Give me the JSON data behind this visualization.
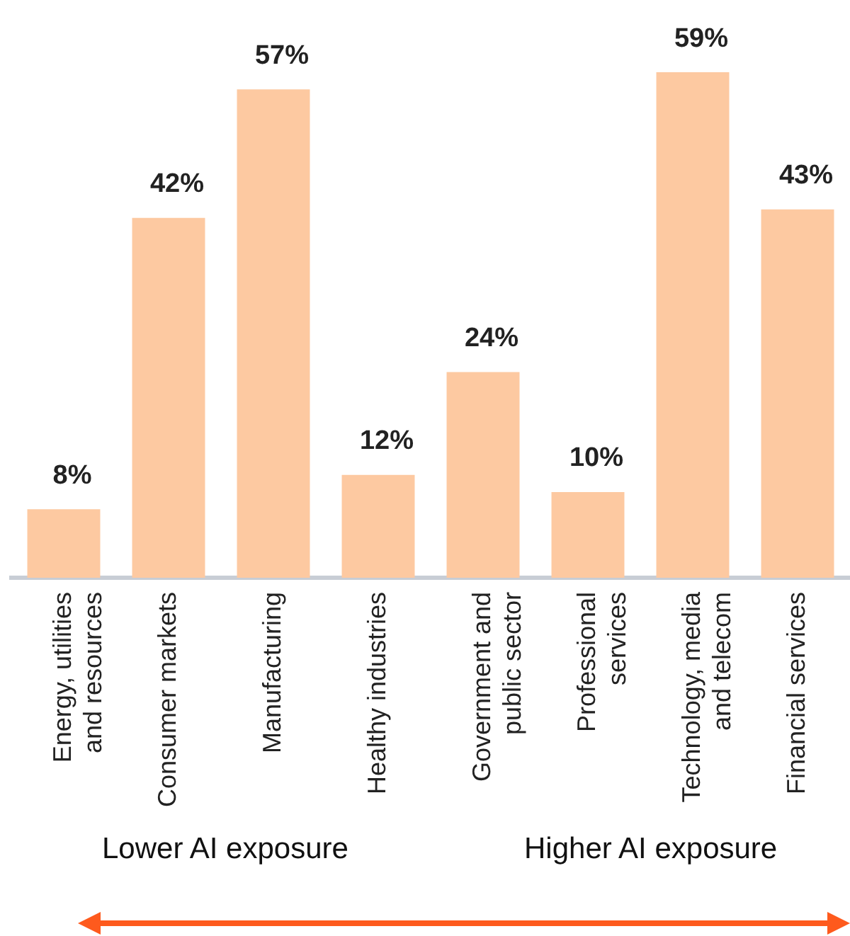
{
  "chart_data": {
    "type": "bar",
    "categories": [
      "Energy, utilities and resources",
      "Consumer markets",
      "Manufacturing",
      "Healthy industries",
      "Government and public sector",
      "Professional services",
      "Technology, media and telecom",
      "Financial services"
    ],
    "values": [
      8,
      42,
      57,
      12,
      24,
      10,
      59,
      43
    ],
    "value_labels": [
      "8%",
      "42%",
      "57%",
      "12%",
      "24%",
      "10%",
      "59%",
      "43%"
    ],
    "color": "#fdc9a1",
    "grid": false,
    "legend": false,
    "annotations": [
      "Lower AI exposure",
      "Higher AI exposure"
    ]
  }
}
